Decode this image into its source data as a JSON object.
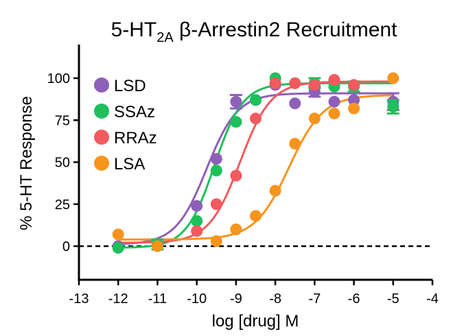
{
  "chart_data": {
    "type": "scatter",
    "title": {
      "prefix": "5-HT",
      "subscript": "2A",
      "suffix": " β-Arrestin2 Recruitment"
    },
    "xlabel": "log [drug] M",
    "ylabel": "% 5-HT Response",
    "xlim": [
      -13,
      -4
    ],
    "ylim": [
      -20,
      120
    ],
    "x_ticks": [
      -13,
      -12,
      -11,
      -10,
      -9,
      -8,
      -7,
      -6,
      -5,
      -4
    ],
    "x_tick_labels": [
      "-13",
      "-12",
      "-11",
      "-10",
      "-9",
      "-8",
      "-7",
      "-6",
      "-5",
      "-4"
    ],
    "y_ticks": [
      0,
      25,
      50,
      75,
      100
    ],
    "y_tick_labels": [
      "0",
      "25",
      "50",
      "75",
      "100"
    ],
    "reference_line": {
      "y": 0,
      "style": "dashed"
    },
    "legend_position": "top-left",
    "grid": false,
    "series": [
      {
        "name": "LSD",
        "color": "#8e5fb8",
        "x": [
          -12,
          -11,
          -10,
          -9.5,
          -9,
          -8.5,
          -8,
          -7.5,
          -7,
          -6.5,
          -6,
          -5
        ],
        "y": [
          0,
          1,
          24,
          52,
          86,
          87,
          96,
          85,
          92,
          86,
          87,
          86
        ],
        "errors": [
          0,
          0,
          0,
          0,
          4,
          0,
          0,
          0,
          3,
          0,
          0,
          5
        ],
        "fit": {
          "bottom": 1,
          "top": 91,
          "logEC50": -9.75,
          "hill": 1.1
        }
      },
      {
        "name": "SSAz",
        "color": "#1fbf5c",
        "x": [
          -12,
          -11,
          -10,
          -9.5,
          -9,
          -8.5,
          -8,
          -7.5,
          -7,
          -6.5,
          -6,
          -5
        ],
        "y": [
          -1,
          1,
          15,
          45,
          74,
          87,
          100,
          97,
          97,
          95,
          95,
          83
        ],
        "errors": [
          0,
          3,
          0,
          0,
          0,
          0,
          0,
          0,
          3,
          0,
          3,
          4
        ],
        "fit": {
          "bottom": -1,
          "top": 97,
          "logEC50": -9.55,
          "hill": 1.2
        }
      },
      {
        "name": "RRAz",
        "color": "#f25a5f",
        "x": [
          -10,
          -9.5,
          -9,
          -8.5,
          -8,
          -7.5,
          -7,
          -6.5,
          -6
        ],
        "y": [
          9,
          25,
          42,
          76,
          97,
          97,
          96,
          99,
          96
        ],
        "errors": [
          0,
          0,
          0,
          0,
          0,
          0,
          0,
          0,
          0
        ],
        "fit": {
          "bottom": 2,
          "top": 98,
          "logEC50": -8.9,
          "hill": 1.1
        }
      },
      {
        "name": "LSA",
        "color": "#f7941d",
        "x": [
          -12,
          -11,
          -9.5,
          -9,
          -8.5,
          -8,
          -7.5,
          -7,
          -6.5,
          -6,
          -5
        ],
        "y": [
          7,
          0,
          3,
          10,
          18,
          33,
          61,
          76,
          79,
          82,
          100
        ],
        "errors": [
          0,
          0,
          0,
          0,
          0,
          0,
          0,
          0,
          0,
          0,
          0
        ],
        "fit": {
          "bottom": 4,
          "top": 90,
          "logEC50": -7.65,
          "hill": 1.0
        }
      }
    ]
  }
}
